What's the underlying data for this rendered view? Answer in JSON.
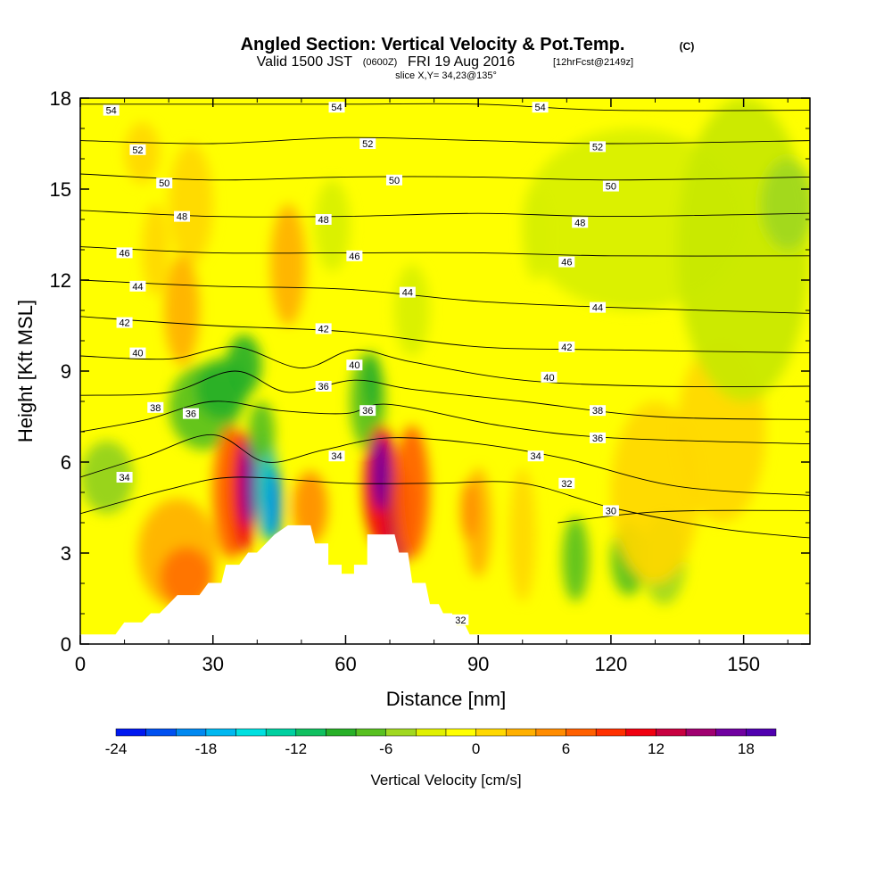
{
  "header": {
    "title": "Angled Section: Vertical Velocity & Pot.Temp.",
    "title_unit": "(C)",
    "valid_prefix": "Valid 1500 JST",
    "valid_zulu": "(0600Z)",
    "valid_date": "FRI 19 Aug 2016",
    "forecast": "[12hrFcst@2149z]",
    "slice": "slice X,Y= 34,23@135°"
  },
  "chart_data": {
    "type": "heatmap",
    "title": "Angled Section: Vertical Velocity & Pot.Temp.",
    "xlabel": "Distance [nm]",
    "ylabel": "Height [Kft MSL]",
    "xlim": [
      0,
      165
    ],
    "ylim": [
      0,
      18
    ],
    "x_ticks": [
      "0",
      "30",
      "60",
      "90",
      "120",
      "150"
    ],
    "x_tick_values": [
      0,
      30,
      60,
      90,
      120,
      150
    ],
    "y_ticks": [
      "0",
      "3",
      "6",
      "9",
      "12",
      "15",
      "18"
    ],
    "y_tick_values": [
      0,
      3,
      6,
      9,
      12,
      15,
      18
    ],
    "colorbar": {
      "label": "Vertical Velocity [cm/s]",
      "min": -24,
      "max": 20,
      "step": 2,
      "tick_labels": [
        "-24",
        "-18",
        "-12",
        "-6",
        "0",
        "6",
        "12",
        "18"
      ],
      "tick_values": [
        -24,
        -18,
        -12,
        -6,
        0,
        6,
        12,
        18
      ],
      "colors": [
        "#0018f0",
        "#0050f0",
        "#0088f0",
        "#00b8f0",
        "#00e0e0",
        "#00d0a0",
        "#10c060",
        "#28b028",
        "#58c020",
        "#a0d820",
        "#e0f000",
        "#ffff00",
        "#ffd800",
        "#ffb000",
        "#ff8c00",
        "#ff6000",
        "#ff3000",
        "#f00010",
        "#c80040",
        "#a00070",
        "#7000a0",
        "#5000b0"
      ]
    },
    "terrain_outline": [
      [
        0,
        0.3
      ],
      [
        8,
        0.3
      ],
      [
        10,
        0.7
      ],
      [
        14,
        0.7
      ],
      [
        16,
        1
      ],
      [
        18,
        1
      ],
      [
        20,
        1.3
      ],
      [
        22,
        1.6
      ],
      [
        27,
        1.6
      ],
      [
        29,
        2
      ],
      [
        32,
        2
      ],
      [
        33,
        2.6
      ],
      [
        36,
        2.6
      ],
      [
        38,
        3
      ],
      [
        40,
        3
      ],
      [
        42,
        3.3
      ],
      [
        44,
        3.6
      ],
      [
        47,
        3.9
      ],
      [
        52,
        3.9
      ],
      [
        53,
        3.3
      ],
      [
        56,
        3.3
      ],
      [
        56,
        2.6
      ],
      [
        59,
        2.6
      ],
      [
        59,
        2.3
      ],
      [
        62,
        2.3
      ],
      [
        62,
        2.6
      ],
      [
        65,
        2.6
      ],
      [
        65,
        3.6
      ],
      [
        71,
        3.6
      ],
      [
        72,
        3
      ],
      [
        74,
        3
      ],
      [
        75,
        2
      ],
      [
        78,
        2
      ],
      [
        79,
        1.3
      ],
      [
        81,
        1.3
      ],
      [
        82,
        1
      ],
      [
        84,
        1
      ],
      [
        85,
        0.6
      ],
      [
        87,
        0.6
      ],
      [
        88,
        0.3
      ],
      [
        165,
        0.3
      ]
    ],
    "theta_contours": [
      {
        "label": "54",
        "points": [
          [
            0,
            17.8
          ],
          [
            30,
            17.8
          ],
          [
            60,
            17.8
          ],
          [
            90,
            17.8
          ],
          [
            120,
            17.6
          ],
          [
            165,
            17.6
          ]
        ],
        "labels": [
          [
            7,
            17.6
          ],
          [
            58,
            17.7
          ],
          [
            104,
            17.7
          ]
        ]
      },
      {
        "label": "52",
        "points": [
          [
            0,
            16.6
          ],
          [
            30,
            16.5
          ],
          [
            60,
            16.7
          ],
          [
            90,
            16.6
          ],
          [
            120,
            16.5
          ],
          [
            165,
            16.6
          ]
        ],
        "labels": [
          [
            13,
            16.3
          ],
          [
            65,
            16.5
          ],
          [
            117,
            16.4
          ]
        ]
      },
      {
        "label": "50",
        "points": [
          [
            0,
            15.5
          ],
          [
            30,
            15.3
          ],
          [
            60,
            15.4
          ],
          [
            90,
            15.4
          ],
          [
            120,
            15.3
          ],
          [
            165,
            15.4
          ]
        ],
        "labels": [
          [
            19,
            15.2
          ],
          [
            71,
            15.3
          ],
          [
            120,
            15.1
          ]
        ]
      },
      {
        "label": "48",
        "points": [
          [
            0,
            14.3
          ],
          [
            30,
            14.1
          ],
          [
            60,
            14.1
          ],
          [
            90,
            14.2
          ],
          [
            120,
            14.1
          ],
          [
            165,
            14.2
          ]
        ],
        "labels": [
          [
            23,
            14.1
          ],
          [
            55,
            14
          ],
          [
            113,
            13.9
          ]
        ]
      },
      {
        "label": "46",
        "points": [
          [
            0,
            13.1
          ],
          [
            30,
            12.9
          ],
          [
            60,
            12.9
          ],
          [
            90,
            12.9
          ],
          [
            120,
            12.8
          ],
          [
            165,
            12.8
          ]
        ],
        "labels": [
          [
            10,
            12.9
          ],
          [
            62,
            12.8
          ],
          [
            110,
            12.6
          ]
        ]
      },
      {
        "label": "44",
        "points": [
          [
            0,
            12
          ],
          [
            30,
            11.8
          ],
          [
            60,
            11.7
          ],
          [
            90,
            11.3
          ],
          [
            120,
            11.1
          ],
          [
            165,
            10.9
          ]
        ],
        "labels": [
          [
            13,
            11.8
          ],
          [
            74,
            11.6
          ],
          [
            117,
            11.1
          ]
        ]
      },
      {
        "label": "42",
        "points": [
          [
            0,
            10.8
          ],
          [
            30,
            10.5
          ],
          [
            60,
            10.3
          ],
          [
            90,
            9.8
          ],
          [
            120,
            9.7
          ],
          [
            165,
            9.6
          ]
        ],
        "labels": [
          [
            10,
            10.6
          ],
          [
            55,
            10.4
          ],
          [
            110,
            9.8
          ]
        ]
      },
      {
        "label": "40",
        "points": [
          [
            0,
            9.5
          ],
          [
            20,
            9.4
          ],
          [
            35,
            9.8
          ],
          [
            50,
            9.1
          ],
          [
            62,
            9.7
          ],
          [
            75,
            9.3
          ],
          [
            100,
            8.7
          ],
          [
            130,
            8.5
          ],
          [
            165,
            8.5
          ]
        ],
        "labels": [
          [
            13,
            9.6
          ],
          [
            62,
            9.2
          ],
          [
            106,
            8.8
          ]
        ]
      },
      {
        "label": "38",
        "points": [
          [
            0,
            8.2
          ],
          [
            20,
            8.3
          ],
          [
            35,
            9
          ],
          [
            47,
            8.3
          ],
          [
            62,
            8.7
          ],
          [
            75,
            8.4
          ],
          [
            100,
            8
          ],
          [
            130,
            7.5
          ],
          [
            165,
            7.4
          ]
        ],
        "labels": [
          [
            17,
            7.8
          ],
          [
            117,
            7.7
          ]
        ]
      },
      {
        "label": "36",
        "points": [
          [
            0,
            7
          ],
          [
            15,
            7.4
          ],
          [
            30,
            8
          ],
          [
            45,
            7.7
          ],
          [
            60,
            7.6
          ],
          [
            70,
            7.9
          ],
          [
            95,
            7.2
          ],
          [
            120,
            6.8
          ],
          [
            165,
            6.6
          ]
        ],
        "labels": [
          [
            25,
            7.6
          ],
          [
            55,
            8.5
          ],
          [
            65,
            7.7
          ],
          [
            117,
            6.8
          ]
        ]
      },
      {
        "label": "34",
        "points": [
          [
            0,
            5.5
          ],
          [
            15,
            6.2
          ],
          [
            30,
            6.9
          ],
          [
            42,
            6
          ],
          [
            55,
            6.4
          ],
          [
            70,
            6.8
          ],
          [
            90,
            6.6
          ],
          [
            110,
            6.1
          ],
          [
            135,
            5.2
          ],
          [
            165,
            4.9
          ]
        ],
        "labels": [
          [
            10,
            5.5
          ],
          [
            58,
            6.2
          ],
          [
            103,
            6.2
          ]
        ]
      },
      {
        "label": "32",
        "points": [
          [
            0,
            4.3
          ],
          [
            20,
            5.1
          ],
          [
            35,
            5.5
          ],
          [
            60,
            5.3
          ],
          [
            80,
            5.3
          ],
          [
            100,
            5.3
          ],
          [
            120,
            4.5
          ],
          [
            145,
            3.8
          ],
          [
            165,
            3.5
          ]
        ],
        "labels": [
          [
            110,
            5.3
          ],
          [
            86,
            0.8
          ]
        ]
      },
      {
        "label": "30",
        "points": [
          [
            108,
            4
          ],
          [
            125,
            4.3
          ],
          [
            140,
            4.4
          ],
          [
            165,
            4.4
          ]
        ],
        "labels": [
          [
            120,
            4.4
          ]
        ]
      }
    ]
  }
}
